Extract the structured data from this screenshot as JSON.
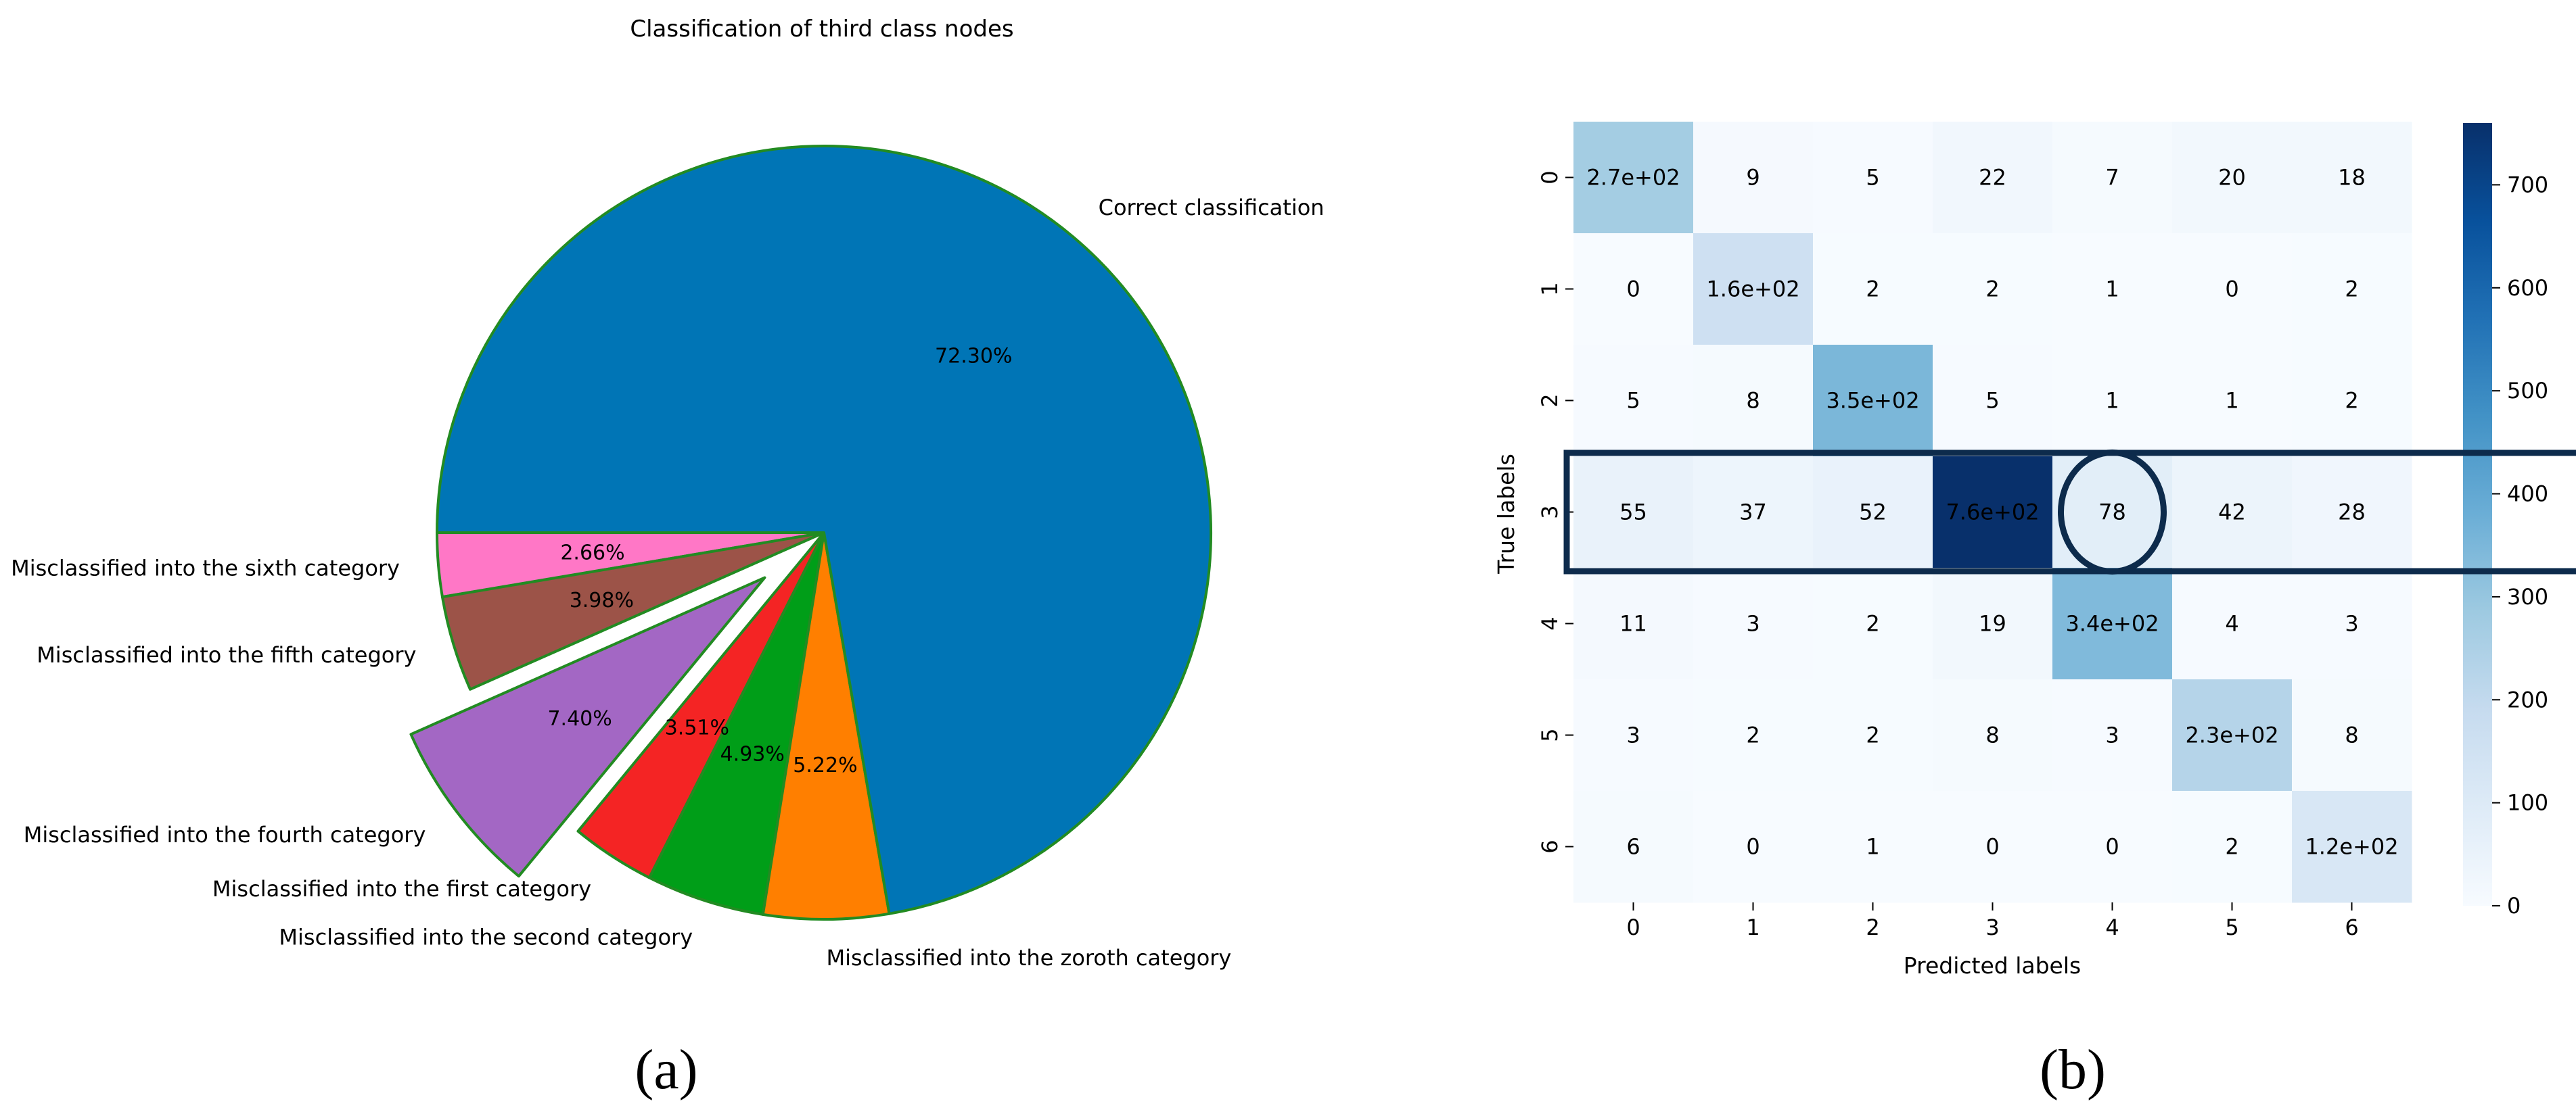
{
  "panels": {
    "a_label": "(a)",
    "b_label": "(b)"
  },
  "chart_data": [
    {
      "type": "pie",
      "title": "Classification of third class nodes",
      "start_angle_deg": 180,
      "direction": "counterclockwise",
      "slice_edge_color": "#228b22",
      "slices": [
        {
          "label": "Misclassified into the sixth category",
          "value": 2.66,
          "pct_text": "2.66%",
          "color": "#ff77c6",
          "exploded": false
        },
        {
          "label": "Misclassified into the fifth category",
          "value": 3.98,
          "pct_text": "3.98%",
          "color": "#9c5348",
          "exploded": false
        },
        {
          "label": "Misclassified into the fourth category",
          "value": 7.4,
          "pct_text": "7.40%",
          "color": "#a367c4",
          "exploded": true
        },
        {
          "label": "Misclassified into the first category",
          "value": 3.51,
          "pct_text": "3.51%",
          "color": "#f42424",
          "exploded": false
        },
        {
          "label": "Misclassified into the second category",
          "value": 4.93,
          "pct_text": "4.93%",
          "color": "#009e18",
          "exploded": false
        },
        {
          "label": "Misclassified into the zoroth category",
          "value": 5.22,
          "pct_text": "5.22%",
          "color": "#ff7f00",
          "exploded": false
        },
        {
          "label": "Correct classification",
          "value": 72.3,
          "pct_text": "72.30%",
          "color": "#0075b6",
          "exploded": false
        }
      ]
    },
    {
      "type": "heatmap",
      "title": "",
      "xlabel": "Predicted labels",
      "ylabel": "True labels",
      "x_categories": [
        "0",
        "1",
        "2",
        "3",
        "4",
        "5",
        "6"
      ],
      "y_categories": [
        "0",
        "1",
        "2",
        "3",
        "4",
        "5",
        "6"
      ],
      "values": [
        [
          270,
          9,
          5,
          22,
          7,
          20,
          18
        ],
        [
          0,
          160,
          2,
          2,
          1,
          0,
          2
        ],
        [
          5,
          8,
          350,
          5,
          1,
          1,
          2
        ],
        [
          55,
          37,
          52,
          760,
          78,
          42,
          28
        ],
        [
          11,
          3,
          2,
          19,
          340,
          4,
          3
        ],
        [
          3,
          2,
          2,
          8,
          3,
          230,
          8
        ],
        [
          6,
          0,
          1,
          0,
          0,
          2,
          120
        ]
      ],
      "cell_labels": [
        [
          "2.7e+02",
          "9",
          "5",
          "22",
          "7",
          "20",
          "18"
        ],
        [
          "0",
          "1.6e+02",
          "2",
          "2",
          "1",
          "0",
          "2"
        ],
        [
          "5",
          "8",
          "3.5e+02",
          "5",
          "1",
          "1",
          "2"
        ],
        [
          "55",
          "37",
          "52",
          "7.6e+02",
          "78",
          "42",
          "28"
        ],
        [
          "11",
          "3",
          "2",
          "19",
          "3.4e+02",
          "4",
          "3"
        ],
        [
          "3",
          "2",
          "2",
          "8",
          "3",
          "2.3e+02",
          "8"
        ],
        [
          "6",
          "0",
          "1",
          "0",
          "0",
          "2",
          "1.2e+02"
        ]
      ],
      "colormap": "Blues",
      "colorbar": {
        "min": 0,
        "max": 760,
        "ticks": [
          0,
          100,
          200,
          300,
          400,
          500,
          600,
          700
        ]
      },
      "highlights": {
        "row_box": 3,
        "circled_cell": {
          "row": 3,
          "col": 4
        },
        "color": "#0d2b4c"
      }
    }
  ]
}
